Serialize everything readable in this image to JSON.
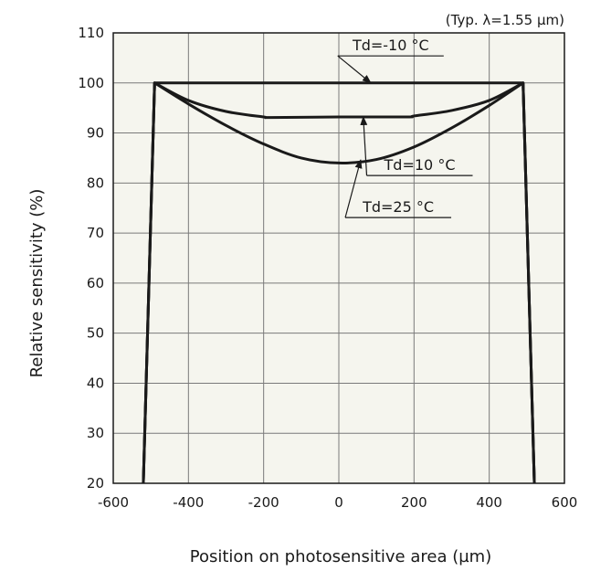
{
  "chart_data": {
    "type": "line",
    "note": "(Typ. λ=1.55 µm)",
    "xlabel": "Position on photosensitive area (µm)",
    "ylabel": "Relative sensitivity (%)",
    "xlim": [
      -600,
      600
    ],
    "ylim": [
      20,
      110
    ],
    "xticks": [
      -600,
      -400,
      -200,
      0,
      200,
      400,
      600
    ],
    "yticks": [
      20,
      30,
      40,
      50,
      60,
      70,
      80,
      90,
      100,
      110
    ],
    "grid": true,
    "background": "#f5f5ee",
    "line_color": "#1a1a1a",
    "series": [
      {
        "name": "Td=-10 °C",
        "x": [
          -520,
          -490,
          -400,
          -200,
          0,
          200,
          400,
          490,
          520
        ],
        "y": [
          20,
          100,
          100,
          100,
          100,
          100,
          100,
          100,
          20
        ]
      },
      {
        "name": "Td=10 °C",
        "x": [
          -520,
          -490,
          -400,
          -300,
          -200,
          -180,
          0,
          180,
          200,
          300,
          400,
          490,
          520
        ],
        "y": [
          20,
          100,
          96.5,
          94.3,
          93.2,
          93.1,
          93.2,
          93.2,
          93.4,
          94.5,
          96.5,
          100,
          20
        ]
      },
      {
        "name": "Td=25 °C",
        "x": [
          -520,
          -490,
          -400,
          -300,
          -200,
          -100,
          0,
          100,
          200,
          300,
          400,
          490,
          520
        ],
        "y": [
          20,
          100,
          95.8,
          91.5,
          87.8,
          85.0,
          84.0,
          84.7,
          87.2,
          91.0,
          95.5,
          100,
          20
        ]
      }
    ],
    "annotations": [
      {
        "text": "Td=-10 °C",
        "series": "Td=-10 °C",
        "label_at": [
          138,
          106.5
        ],
        "arrow_to": [
          85,
          100
        ]
      },
      {
        "text": "Td=10 °C",
        "series": "Td=10 °C",
        "label_at": [
          215,
          82.6
        ],
        "arrow_to": [
          65,
          93.2
        ]
      },
      {
        "text": "Td=25 °C",
        "series": "Td=25 °C",
        "label_at": [
          158,
          74.2
        ],
        "arrow_to": [
          58,
          84.6
        ]
      }
    ]
  }
}
